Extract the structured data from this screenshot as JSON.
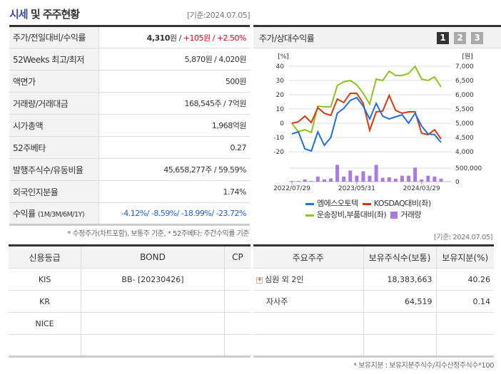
{
  "header": {
    "title_highlight": "시세",
    "title_rest": " 및 주주현황",
    "as_of": "[기준:2024.07.05]"
  },
  "summary": {
    "rows": [
      {
        "label": "주가/전일대비/수익률",
        "price": "4,310",
        "price_unit": "원 / ",
        "change": "+105원 / +2.50%"
      },
      {
        "label": "52Weeks 최고/최저",
        "value": "5,870원 / 4,020원"
      },
      {
        "label": "액면가",
        "value": "500원"
      },
      {
        "label": "거래량/거래대금",
        "value": "168,545주 / 7억원"
      },
      {
        "label": "시가총액",
        "value": "1,968억원"
      },
      {
        "label": "52주베타",
        "value": "0.27"
      },
      {
        "label": "발행주식수/유동비율",
        "value": "45,658,277주 / 59.59%"
      },
      {
        "label": "외국인지분율",
        "value": "1.74%"
      },
      {
        "label": "수익률",
        "label_sub": "(1M/3M/6M/1Y)",
        "value": "-4.12%/ -8.59%/ -18.99%/ -23.72%"
      }
    ],
    "note": "* 수정주가(차트포함), 보통주 기준, * 52주베타: 주간수익률 기준"
  },
  "chart_panel": {
    "title": "주가/상대수익률",
    "pages": [
      "1",
      "2",
      "3"
    ],
    "active_page": "1"
  },
  "chart_data": {
    "type": "line",
    "left_unit": "[%]",
    "right_unit": "[원]",
    "left_ticks": [
      "40",
      "30",
      "20",
      "10",
      "0",
      "-10",
      "-20"
    ],
    "right_ticks": [
      "7,000",
      "6,500",
      "6,000",
      "5,500",
      "5,000",
      "4,500",
      "4,000"
    ],
    "ylim_left": [
      -20,
      40
    ],
    "ylim_right": [
      4000,
      7000
    ],
    "volume_ticks": [
      "500,000",
      "0"
    ],
    "volume_max_tick": 500000,
    "x_tick_labels": [
      {
        "index": 0,
        "label": "2022/07/29"
      },
      {
        "index": 10,
        "label": "2023/05/31"
      },
      {
        "index": 20,
        "label": "2024/03/29"
      }
    ],
    "grid": true,
    "legend_position": "bottom",
    "series": [
      {
        "name": "엠에스오토텍",
        "color": "#1f6fe0",
        "values": [
          -7.5,
          -6,
          -18,
          -19.5,
          -6,
          -15.5,
          -10,
          7,
          10.5,
          16,
          18,
          12,
          3,
          14,
          5,
          3,
          4.5,
          6,
          0,
          7,
          -2,
          -7.5,
          -8,
          -13.5
        ]
      },
      {
        "name": "KOSDAQ대비(좌)",
        "color": "#d43a0c",
        "values": [
          0,
          1,
          5,
          0.5,
          11,
          7,
          5.5,
          17,
          14.5,
          21,
          21,
          14,
          -5,
          8,
          8.5,
          19.5,
          9,
          7,
          8,
          8,
          -7,
          -8,
          -4.5,
          -11
        ]
      },
      {
        "name": "운송장비,부품대비(좌)",
        "color": "#8cc41c",
        "values": [
          0,
          -6,
          -4.5,
          -6.5,
          12,
          11.5,
          11.5,
          26.5,
          29,
          30,
          27,
          21,
          13.5,
          31,
          30,
          36.5,
          33.5,
          33.5,
          35,
          40,
          31,
          30,
          32.5,
          25.5
        ]
      },
      {
        "name": "거래량",
        "color": "#a77be0",
        "type": "bar",
        "values": [
          25000,
          25000,
          80000,
          25000,
          190000,
          80000,
          120000,
          620000,
          190000,
          410000,
          220000,
          380000,
          220000,
          620000,
          140000,
          160000,
          110000,
          220000,
          220000,
          520000,
          80000,
          220000,
          190000,
          110000
        ]
      }
    ]
  },
  "credit": {
    "headers": [
      "신용등급",
      "BOND",
      "CP"
    ],
    "rows": [
      [
        "KIS",
        "BB-  [20230426]",
        ""
      ],
      [
        "KR",
        "",
        ""
      ],
      [
        "NICE",
        "",
        ""
      ],
      [
        "",
        "",
        ""
      ]
    ]
  },
  "holders": {
    "as_of": "[기준: 2024.07.05]",
    "headers": [
      "주요주주",
      "보유주식수(보통)",
      "보유지분(%)"
    ],
    "rows": [
      [
        "심원 외 2인",
        "18,383,663",
        "40.26"
      ],
      [
        "자사주",
        "64,519",
        "0.14"
      ],
      [
        "",
        "",
        ""
      ],
      [
        "",
        "",
        ""
      ]
    ],
    "note": "* 보유지분 : 보유지분주식수/지수산정주식수*100"
  }
}
